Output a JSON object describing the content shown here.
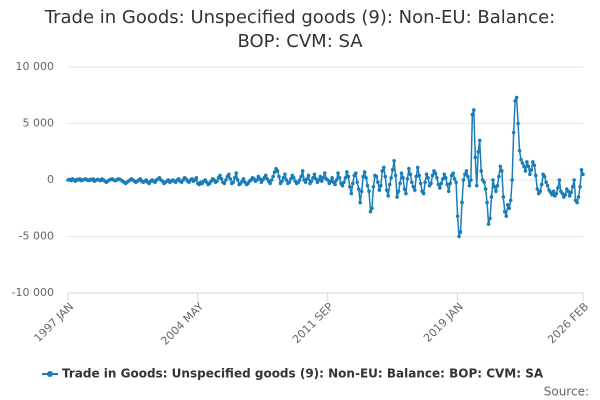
{
  "chart_data": {
    "type": "line",
    "title": "Trade in Goods: Unspecified goods (9): Non-EU: Balance: BOP: CVM: SA",
    "source": "Source:",
    "categories": [
      "1997 JAN",
      null,
      null,
      null,
      null,
      null,
      null,
      null,
      null,
      null,
      null,
      null,
      null,
      null,
      null,
      null,
      null,
      null,
      null,
      null,
      null,
      null,
      null,
      null,
      null,
      null,
      null,
      null,
      null,
      null,
      null,
      null,
      null,
      null,
      null,
      null,
      null,
      null,
      null,
      null,
      null,
      null,
      null,
      null,
      null,
      null,
      null,
      null,
      null,
      null,
      null,
      null,
      null,
      null,
      null,
      null,
      null,
      null,
      null,
      null,
      null,
      null,
      null,
      null,
      null,
      null,
      null,
      null,
      null,
      null,
      null,
      null,
      null,
      null,
      null,
      null,
      null,
      null,
      null,
      null,
      null,
      null,
      null,
      null,
      null,
      null,
      null,
      null,
      "2004 MAY",
      null,
      null,
      null,
      null,
      null,
      null,
      null,
      null,
      null,
      null,
      null,
      null,
      null,
      null,
      null,
      null,
      null,
      null,
      null,
      null,
      null,
      null,
      null,
      null,
      null,
      null,
      null,
      null,
      null,
      null,
      null,
      null,
      null,
      null,
      null,
      null,
      null,
      null,
      null,
      null,
      null,
      null,
      null,
      null,
      null,
      null,
      null,
      null,
      null,
      null,
      null,
      null,
      null,
      null,
      null,
      null,
      null,
      null,
      null,
      null,
      null,
      null,
      null,
      null,
      null,
      null,
      null,
      null,
      null,
      null,
      null,
      null,
      null,
      null,
      null,
      null,
      null,
      null,
      null,
      null,
      null,
      null,
      null,
      null,
      null,
      null,
      null,
      "2011 SEP",
      null,
      null,
      null,
      null,
      null,
      null,
      null,
      null,
      null,
      null,
      null,
      null,
      null,
      null,
      null,
      null,
      null,
      null,
      null,
      null,
      null,
      null,
      null,
      null,
      null,
      null,
      null,
      null,
      null,
      null,
      null,
      null,
      null,
      null,
      null,
      null,
      null,
      null,
      null,
      null,
      null,
      null,
      null,
      null,
      null,
      null,
      null,
      null,
      null,
      null,
      null,
      null,
      null,
      null,
      null,
      null,
      null,
      null,
      null,
      null,
      null,
      null,
      null,
      null,
      null,
      null,
      null,
      null,
      null,
      null,
      null,
      null,
      null,
      null,
      null,
      null,
      null,
      null,
      null,
      null,
      null,
      null,
      null,
      null,
      null,
      null,
      null,
      "2019 JAN",
      null,
      null,
      null,
      null,
      null,
      null,
      null,
      null,
      null,
      null,
      null,
      null,
      null,
      null,
      null,
      null,
      null,
      null,
      null,
      null,
      null,
      null,
      null,
      null,
      null,
      null,
      null,
      null,
      null,
      null,
      null,
      null,
      null,
      null,
      null,
      null,
      null,
      null,
      null,
      null,
      null,
      null,
      null,
      null,
      null,
      null,
      null,
      null,
      null,
      null,
      null,
      null,
      null,
      null,
      null,
      null,
      null,
      null,
      null,
      null,
      null,
      null,
      null,
      null,
      null,
      null,
      null,
      null,
      null,
      null,
      null,
      null,
      null,
      null,
      null,
      null,
      null,
      null,
      null,
      null,
      null,
      null,
      null,
      null,
      "2026 FEB"
    ],
    "series": [
      {
        "name": "Trade in Goods: Unspecified goods (9): Non-EU: Balance: BOP: CVM: SA",
        "color": "#1a7db8",
        "values": [
          0,
          50,
          -50,
          100,
          0,
          -100,
          50,
          0,
          100,
          -50,
          0,
          50,
          100,
          0,
          -50,
          50,
          0,
          100,
          -100,
          0,
          50,
          0,
          -50,
          100,
          0,
          -100,
          -200,
          -100,
          0,
          50,
          100,
          0,
          -50,
          0,
          100,
          50,
          0,
          -100,
          -200,
          -300,
          -200,
          -100,
          0,
          100,
          0,
          -100,
          -200,
          -100,
          0,
          100,
          -100,
          -200,
          -100,
          0,
          -200,
          -300,
          -100,
          0,
          -100,
          -200,
          0,
          100,
          200,
          0,
          -100,
          -300,
          -200,
          -100,
          0,
          -200,
          -100,
          0,
          -100,
          -200,
          0,
          100,
          -100,
          -200,
          0,
          200,
          100,
          -100,
          -200,
          0,
          100,
          -100,
          0,
          200,
          -300,
          -400,
          -200,
          -300,
          -100,
          0,
          -200,
          -400,
          -300,
          -100,
          100,
          0,
          -200,
          -100,
          200,
          400,
          100,
          -200,
          -300,
          0,
          300,
          500,
          100,
          -300,
          -200,
          200,
          600,
          0,
          -400,
          -300,
          -100,
          100,
          -200,
          -400,
          -300,
          -100,
          0,
          200,
          100,
          -100,
          0,
          300,
          100,
          -200,
          0,
          200,
          400,
          100,
          -100,
          -300,
          0,
          300,
          700,
          1000,
          800,
          300,
          -300,
          -100,
          200,
          500,
          0,
          -300,
          -200,
          100,
          400,
          200,
          -100,
          -300,
          -200,
          0,
          300,
          800,
          0,
          -200,
          100,
          400,
          -300,
          -100,
          200,
          500,
          100,
          -200,
          0,
          300,
          -100,
          200,
          600,
          100,
          0,
          -300,
          -100,
          200,
          -200,
          -400,
          0,
          600,
          200,
          -300,
          -500,
          -200,
          200,
          700,
          300,
          -600,
          -1200,
          -300,
          400,
          600,
          -200,
          -800,
          -2000,
          -1000,
          300,
          700,
          200,
          -500,
          -1000,
          -2800,
          -2500,
          -600,
          400,
          300,
          -200,
          -900,
          -500,
          800,
          1100,
          300,
          -900,
          -1400,
          -400,
          200,
          900,
          1700,
          400,
          -1500,
          -1000,
          -300,
          600,
          200,
          -800,
          -1200,
          100,
          1000,
          500,
          -200,
          -600,
          -900,
          300,
          1100,
          400,
          -300,
          -1000,
          -1200,
          -200,
          500,
          200,
          -500,
          -300,
          400,
          800,
          600,
          200,
          -400,
          -700,
          -300,
          100,
          500,
          200,
          -400,
          -1000,
          -300,
          400,
          600,
          100,
          -200,
          -3200,
          -5000,
          -4600,
          -2000,
          0,
          500,
          800,
          300,
          -500,
          0,
          5800,
          6200,
          2000,
          -500,
          2500,
          3500,
          800,
          0,
          -200,
          -800,
          -2000,
          -3900,
          -3400,
          -1500,
          0,
          -600,
          -1000,
          -500,
          300,
          1200,
          800,
          -1500,
          -2800,
          -3200,
          -2200,
          -2500,
          -1800,
          0,
          4200,
          7000,
          7300,
          5000,
          2600,
          1800,
          1500,
          1200,
          800,
          1600,
          1200,
          500,
          900,
          1600,
          1300,
          400,
          -800,
          -1200,
          -1000,
          -400,
          500,
          300,
          -200,
          -500,
          -900,
          -1100,
          -1300,
          -1000,
          -1400,
          -1200,
          -700,
          0,
          -1000,
          -1200,
          -1500,
          -1300,
          -800,
          -1000,
          -1400,
          -1100,
          -600,
          0,
          -1800,
          -2000,
          -1500,
          -600,
          900,
          500
        ]
      }
    ],
    "ylim": [
      -10000,
      10000
    ],
    "yticks": [
      {
        "value": -10000,
        "label": "-10 000"
      },
      {
        "value": -5000,
        "label": "-5 000"
      },
      0,
      {
        "value": 5000,
        "label": "5 000"
      },
      {
        "value": 10000,
        "label": "10 000"
      }
    ],
    "grid": true,
    "legend": "bottom"
  }
}
